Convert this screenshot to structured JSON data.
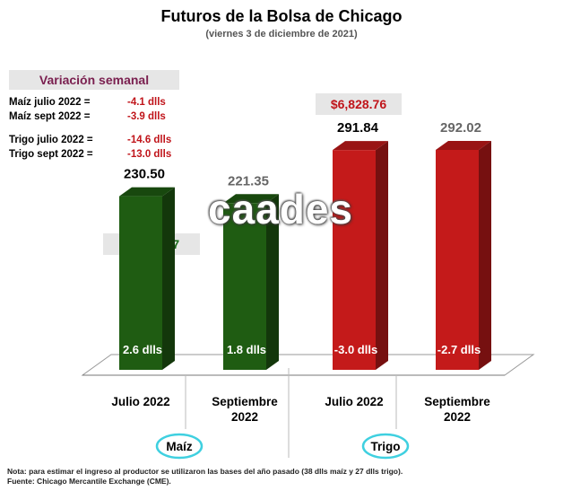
{
  "header": {
    "title": "Futuros de la Bolsa de Chicago",
    "subtitle": "(viernes 3 de diciembre de 2021)"
  },
  "variacion": {
    "title": "Variación semanal",
    "rows": [
      {
        "label": "Maíz julio 2022  =",
        "value": "-4.1 dlls"
      },
      {
        "label": "Maíz sept 2022  =",
        "value": "-3.9 dlls"
      },
      {
        "label": "Trigo julio 2022 =",
        "value": "-14.6 dlls"
      },
      {
        "label": "Trigo sept 2022 =",
        "value": "-13.0 dlls"
      }
    ]
  },
  "price_boxes": {
    "maiz": "$5,750.67",
    "trigo": "$6,828.76"
  },
  "watermark": "caades",
  "groups": {
    "maiz": "Maíz",
    "trigo": "Trigo"
  },
  "footnotes": {
    "nota": "Nota: para estimar el ingreso al productor se utilizaron las bases del año pasado (38 dlls maíz y 27 dlls trigo).",
    "fuente": "Fuente: Chicago Mercantile Exchange (CME)."
  },
  "colors": {
    "maiz": "#1f5c12",
    "trigo": "#c41a1a",
    "maiz_price": "#1a6b1a",
    "trigo_price": "#c0141a",
    "group_ellipse": "#3fd0e0"
  },
  "chart_data": {
    "type": "bar",
    "categories": [
      "Julio 2022",
      "Septiembre 2022",
      "Julio 2022",
      "Septiembre 2022"
    ],
    "category_lines": [
      [
        "Julio 2022"
      ],
      [
        "Septiembre",
        "2022"
      ],
      [
        "Julio 2022"
      ],
      [
        "Septiembre",
        "2022"
      ]
    ],
    "groups": [
      "Maíz",
      "Maíz",
      "Trigo",
      "Trigo"
    ],
    "values": [
      230.5,
      221.35,
      291.84,
      292.02
    ],
    "value_labels": [
      "230.50",
      "221.35",
      "291.84",
      "292.02"
    ],
    "bar_labels": [
      "2.6 dlls",
      "1.8 dlls",
      "-3.0 dlls",
      "-2.7 dlls"
    ],
    "value_label_colors": [
      "#000000",
      "#666666",
      "#000000",
      "#666666"
    ],
    "bar_colors": [
      "#1f5c12",
      "#1f5c12",
      "#c41a1a",
      "#c41a1a"
    ]
  }
}
